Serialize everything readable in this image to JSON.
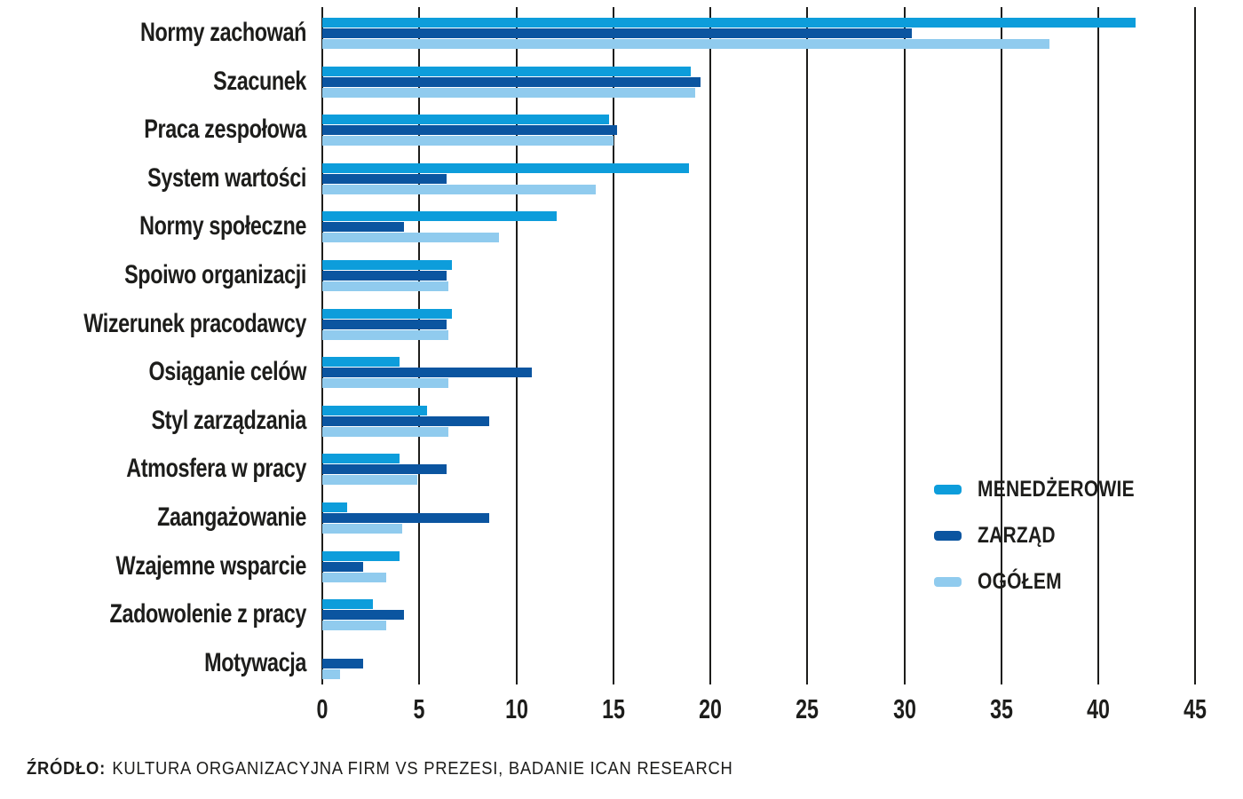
{
  "chart_data": {
    "type": "bar",
    "orientation": "horizontal",
    "title": "",
    "xlabel": "",
    "ylabel": "",
    "xlim": [
      0,
      45
    ],
    "xticks": [
      0,
      5,
      10,
      15,
      20,
      25,
      30,
      35,
      40,
      45
    ],
    "grid": "vertical",
    "legend_position": "right-middle",
    "categories": [
      "Normy zachowań",
      "Szacunek",
      "Praca zespołowa",
      "System wartości",
      "Normy społeczne",
      "Spoiwo organizacji",
      "Wizerunek pracodawcy",
      "Osiąganie celów",
      "Styl zarządzania",
      "Atmosfera w pracy",
      "Zaangażowanie",
      "Wzajemne wsparcie",
      "Zadowolenie z pracy",
      "Motywacja"
    ],
    "series": [
      {
        "name": "MENEDŻEROWIE",
        "color": "#0d9ddb",
        "values": [
          41.9,
          19.0,
          14.8,
          18.9,
          12.1,
          6.7,
          6.7,
          4.0,
          5.4,
          4.0,
          1.3,
          4.0,
          2.6,
          0
        ]
      },
      {
        "name": "ZARZĄD",
        "color": "#0b55a0",
        "values": [
          30.4,
          19.5,
          15.2,
          6.4,
          4.2,
          6.4,
          6.4,
          10.8,
          8.6,
          6.4,
          8.6,
          2.1,
          4.2,
          2.1
        ]
      },
      {
        "name": "OGÓŁEM",
        "color": "#90cbee",
        "values": [
          37.5,
          19.2,
          15.0,
          14.1,
          9.1,
          6.5,
          6.5,
          6.5,
          6.5,
          4.9,
          4.1,
          3.3,
          3.3,
          0.9
        ]
      }
    ]
  },
  "source": {
    "label": "ŹRÓDŁO:",
    "text": "KULTURA ORGANIZACYJNA FIRM VS PREZESI, BADANIE ICAN RESEARCH"
  },
  "colors": {
    "text": "#1d1d1b",
    "gridline": "#1d1d1b",
    "background": "#ffffff"
  }
}
